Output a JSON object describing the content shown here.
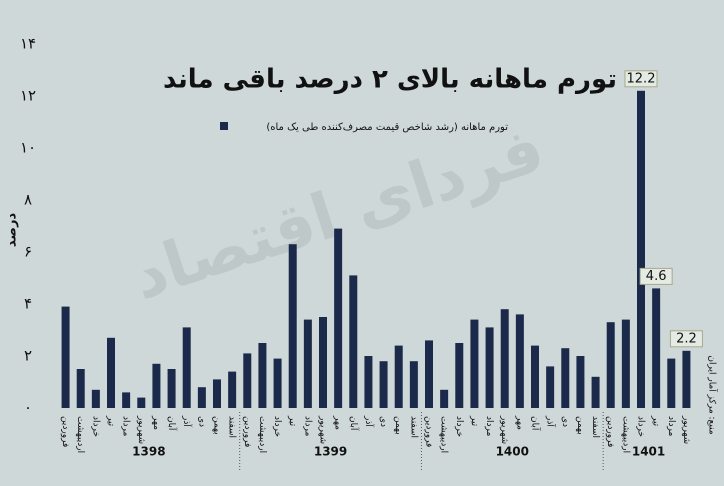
{
  "chart_data": {
    "type": "bar",
    "title": "تورم ماهانه بالای ۲ درصد باقی ماند",
    "legend": "تورم ماهانه (رشد شاخص قیمت مصرف‌کننده طی یک ماه)",
    "ylabel": "درصد",
    "source": "منبع: مرکز آمار ایران",
    "watermark": "فردای اقتصاد",
    "color": "#1b2a4a",
    "groups": [
      {
        "label": "1398",
        "categories": [
          "فروردین",
          "اردیبهشت",
          "خرداد",
          "تیر",
          "مرداد",
          "شهریور",
          "مهر",
          "آبان",
          "آذر",
          "دی",
          "بهمن",
          "اسفند"
        ]
      },
      {
        "label": "1399",
        "categories": [
          "فروردین",
          "اردیبهشت",
          "خرداد",
          "تیر",
          "مرداد",
          "شهریور",
          "مهر",
          "آبان",
          "آذر",
          "دی",
          "بهمن",
          "اسفند"
        ]
      },
      {
        "label": "1400",
        "categories": [
          "فروردین",
          "اردیبهشت",
          "خرداد",
          "تیر",
          "مرداد",
          "شهریور",
          "مهر",
          "آبان",
          "آذر",
          "دی",
          "بهمن",
          "اسفند"
        ]
      },
      {
        "label": "1401",
        "categories": [
          "فروردین",
          "اردیبهشت",
          "خرداد",
          "تیر",
          "مرداد",
          "شهریور"
        ]
      }
    ],
    "values": [
      3.9,
      1.5,
      0.7,
      2.7,
      0.6,
      0.4,
      1.7,
      1.5,
      3.1,
      0.8,
      1.1,
      1.4,
      2.1,
      2.5,
      1.9,
      6.3,
      3.4,
      3.5,
      6.9,
      5.1,
      2.0,
      1.8,
      2.4,
      1.8,
      2.6,
      0.7,
      2.5,
      3.4,
      3.1,
      3.8,
      3.6,
      2.4,
      1.6,
      2.3,
      2.0,
      1.2,
      3.3,
      3.4,
      12.2,
      4.6,
      1.9,
      2.2
    ],
    "value_labels": [
      null,
      null,
      null,
      null,
      null,
      null,
      null,
      null,
      null,
      null,
      null,
      null,
      null,
      null,
      null,
      null,
      null,
      null,
      null,
      null,
      null,
      null,
      null,
      null,
      null,
      null,
      null,
      null,
      null,
      null,
      null,
      null,
      null,
      null,
      null,
      null,
      null,
      null,
      "12.2",
      "4.6",
      null,
      "2.2"
    ],
    "ylim": [
      0,
      14
    ],
    "yticks": [
      {
        "value": 0,
        "label": "۰"
      },
      {
        "value": 2,
        "label": "۲"
      },
      {
        "value": 4,
        "label": "۴"
      },
      {
        "value": 6,
        "label": "۶"
      },
      {
        "value": 8,
        "label": "۸"
      },
      {
        "value": 10,
        "label": "۱۰"
      },
      {
        "value": 12,
        "label": "۱۲"
      },
      {
        "value": 14,
        "label": "۱۴"
      }
    ]
  }
}
